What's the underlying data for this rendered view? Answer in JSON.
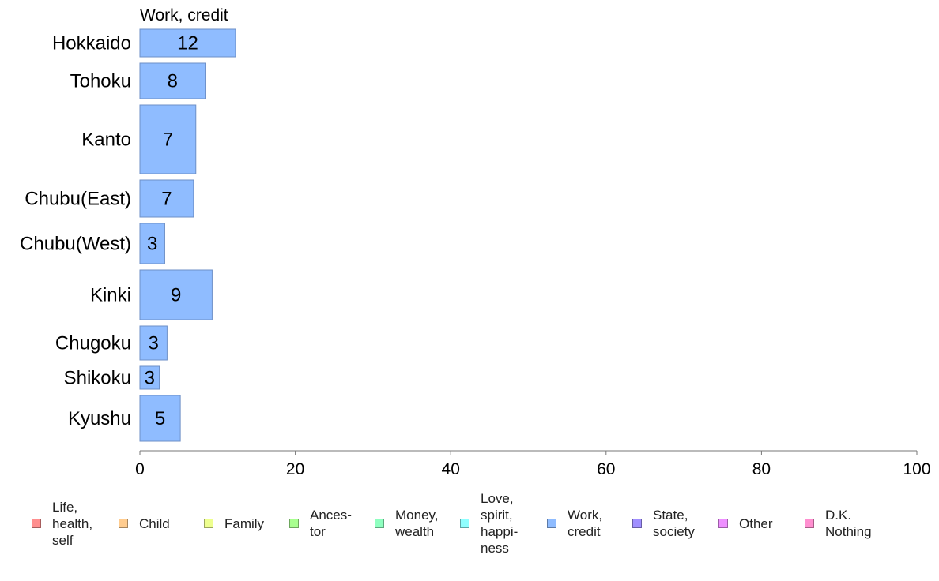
{
  "chart_data": {
    "type": "bar",
    "orientation": "horizontal",
    "title": "Work, credit",
    "categories": [
      "Hokkaido",
      "Tohoku",
      "Kanto",
      "Chubu(East)",
      "Chubu(West)",
      "Kinki",
      "Chugoku",
      "Shikoku",
      "Kyushu"
    ],
    "series": [
      {
        "name": "Work, credit",
        "color": "#8fbcff",
        "values": [
          12.3,
          8.4,
          7.2,
          6.9,
          3.2,
          9.3,
          3.5,
          2.5,
          5.2
        ],
        "labels": [
          "12",
          "8",
          "7",
          "7",
          "3",
          "9",
          "3",
          "3",
          "5"
        ]
      }
    ],
    "xlim": [
      0,
      100
    ],
    "xticks": [
      "0",
      "20",
      "40",
      "60",
      "80",
      "100"
    ],
    "grid": false,
    "legend": {
      "placement": "bottom",
      "items": [
        {
          "label": "Life,\nhealth,\nself",
          "color": "#ff8f8f"
        },
        {
          "label": "Child",
          "color": "#ffcc8f"
        },
        {
          "label": "Family",
          "color": "#eeff8f"
        },
        {
          "label": "Ances-\ntor",
          "color": "#a8ff8f"
        },
        {
          "label": "Money,\nwealth",
          "color": "#8fffc0"
        },
        {
          "label": "Love,\nspirit,\nhappi-\nness",
          "color": "#8fffff"
        },
        {
          "label": "Work,\ncredit",
          "color": "#8fbcff"
        },
        {
          "label": "State,\nsociety",
          "color": "#a08fff"
        },
        {
          "label": "Other",
          "color": "#ee8fff"
        },
        {
          "label": "D.K.\nNothing",
          "color": "#ff8fd0"
        }
      ]
    }
  }
}
